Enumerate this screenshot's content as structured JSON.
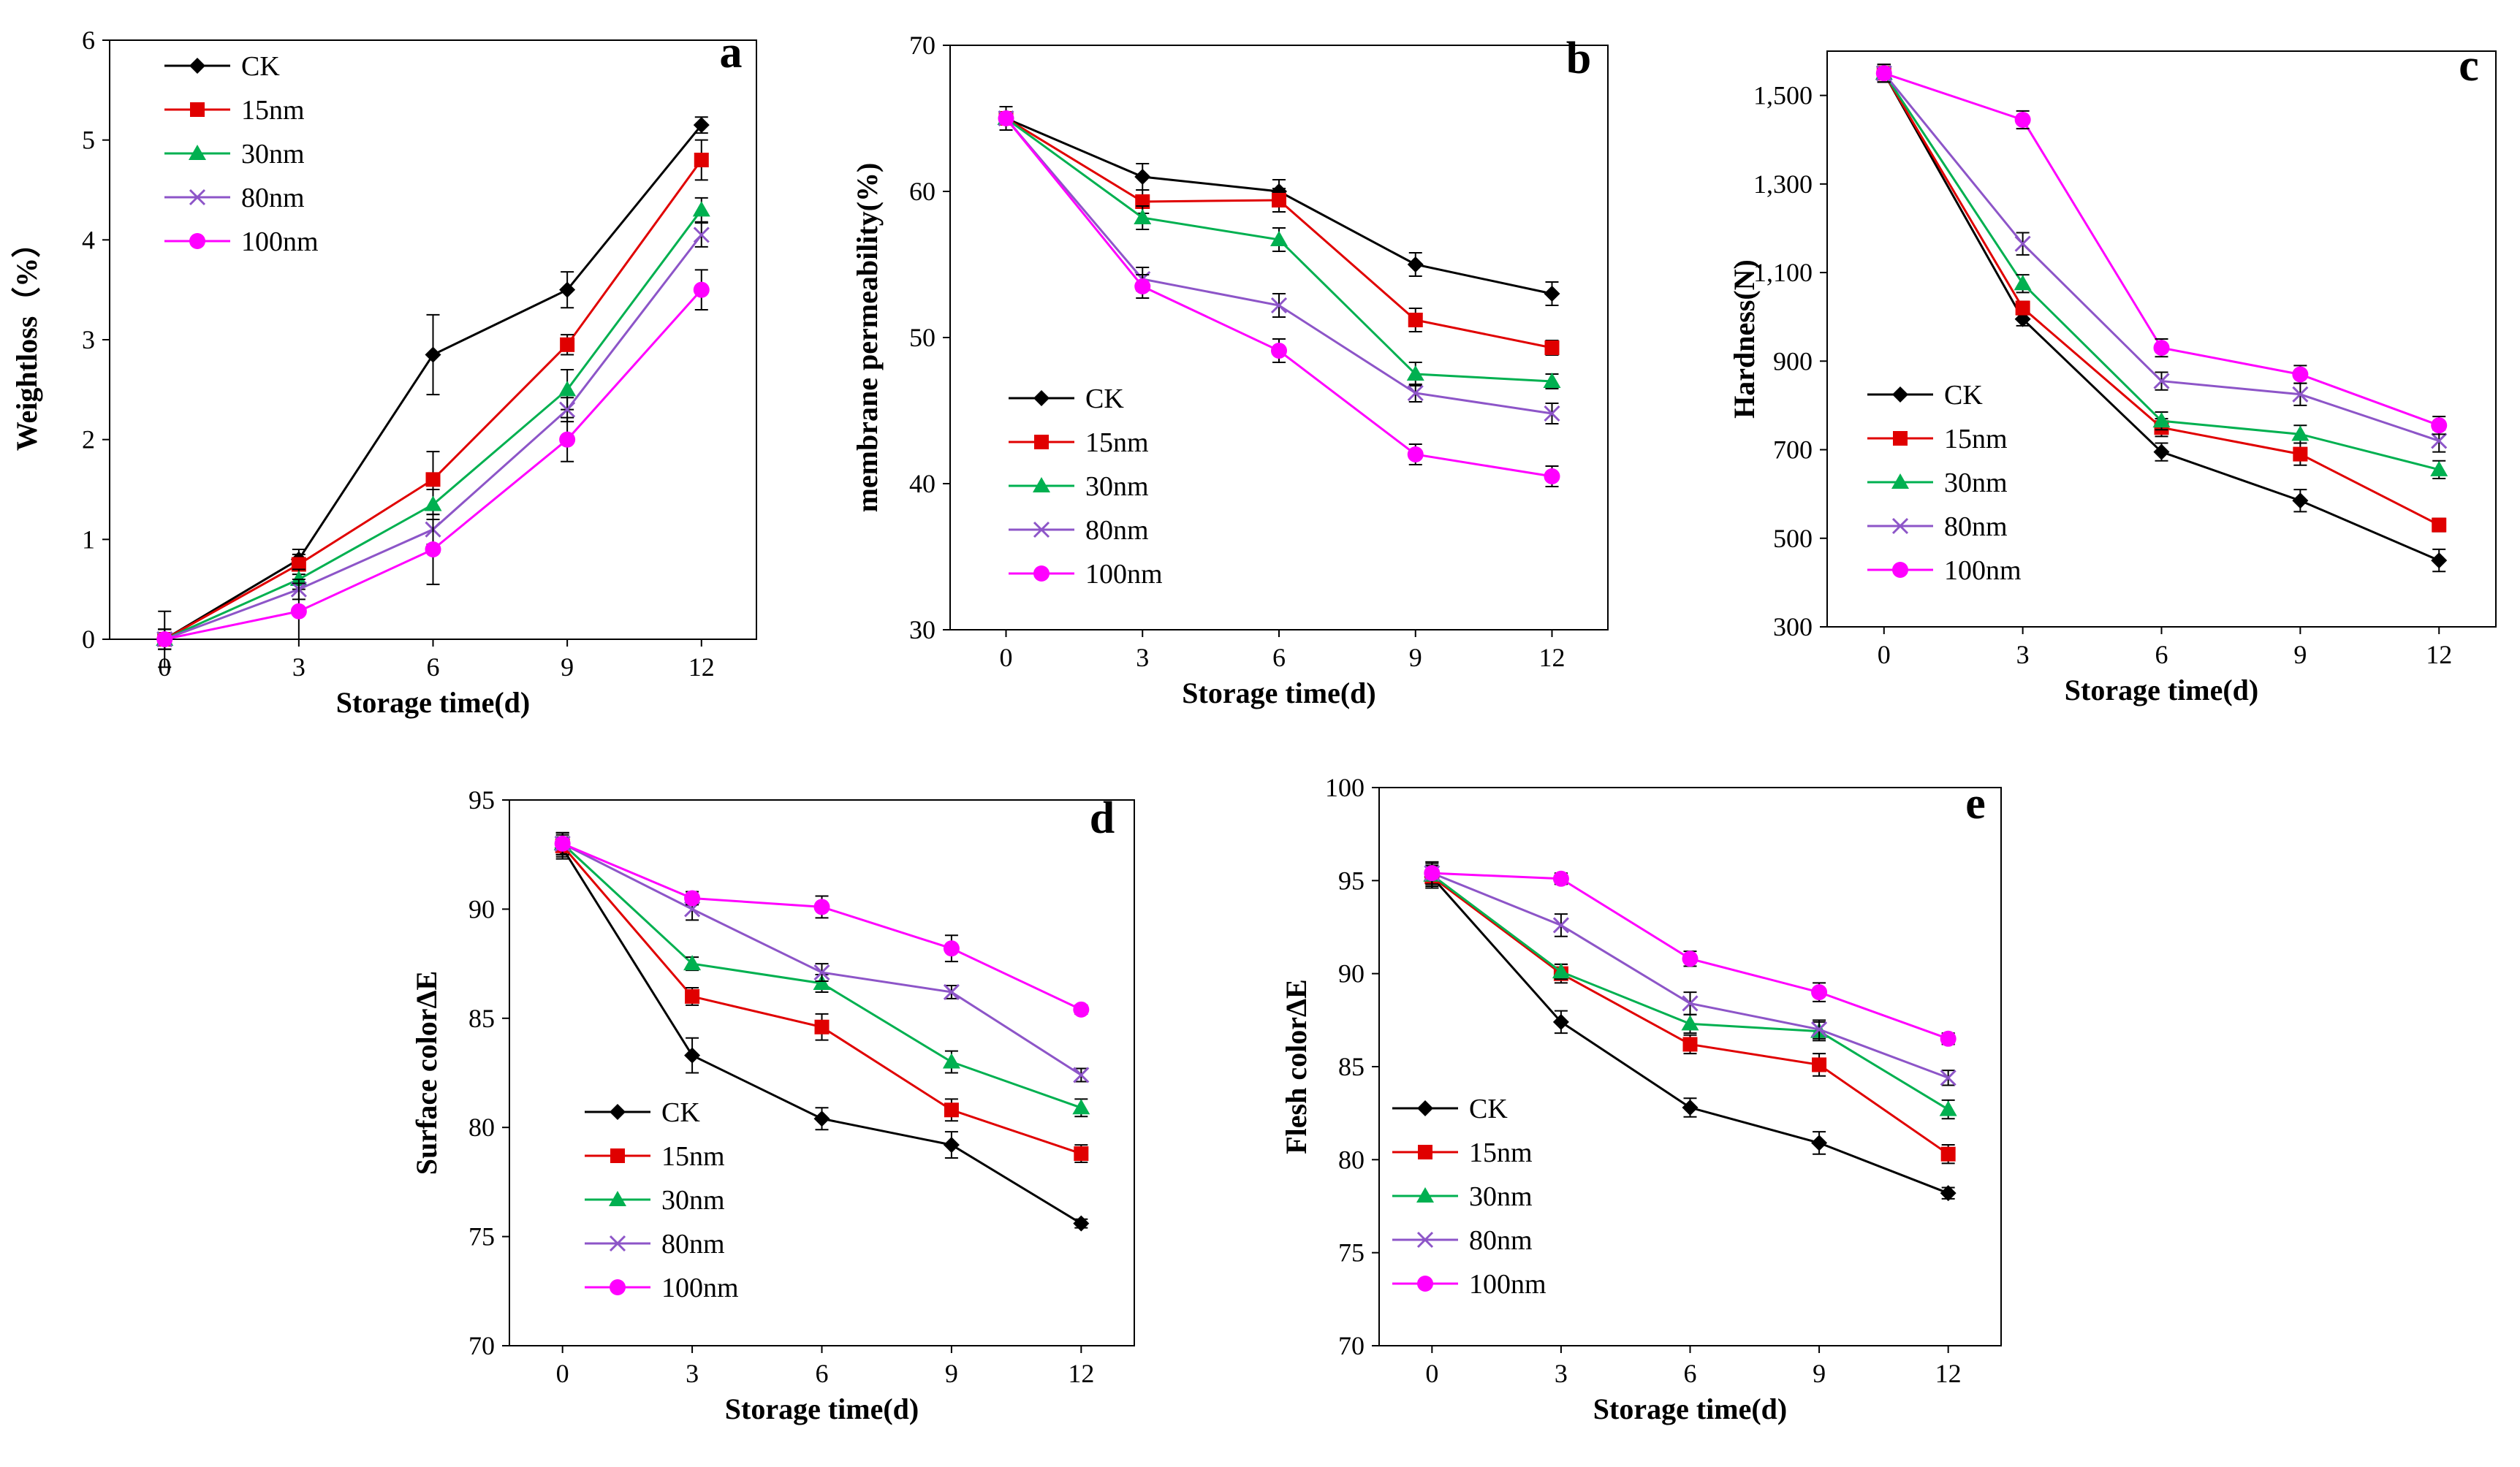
{
  "figure": {
    "series_colors": {
      "CK": "#000000",
      "15nm": "#e00000",
      "30nm": "#00b050",
      "80nm": "#8d55c8",
      "100nm": "#ff00ff"
    },
    "series_markers": {
      "CK": "diamond",
      "15nm": "square",
      "30nm": "triangle",
      "80nm": "x",
      "100nm": "circle"
    }
  },
  "chart_data": [
    {
      "panel": "a",
      "type": "line",
      "x": [
        0,
        3,
        6,
        9,
        12
      ],
      "xlabel": "Storage time(d)",
      "ylabel": "Weightloss（%）",
      "ylim": [
        0,
        6
      ],
      "yticks": [
        0,
        1,
        2,
        3,
        4,
        5,
        6
      ],
      "ytick_labels": [
        "0",
        "1",
        "2",
        "3",
        "4",
        "5",
        "6"
      ],
      "xticks": [
        0,
        3,
        6,
        9,
        12
      ],
      "xtick_labels": [
        "0",
        "3",
        "6",
        "9",
        "12"
      ],
      "legend": "top-left",
      "series": [
        {
          "name": "CK",
          "values": [
            0.0,
            0.8,
            2.85,
            3.5,
            5.15
          ],
          "errors": [
            0.28,
            0.1,
            0.4,
            0.18,
            0.08
          ]
        },
        {
          "name": "15nm",
          "values": [
            0.0,
            0.75,
            1.6,
            2.95,
            4.8
          ],
          "errors": [
            0.1,
            0.1,
            0.28,
            0.1,
            0.2
          ]
        },
        {
          "name": "30nm",
          "values": [
            0.0,
            0.6,
            1.35,
            2.5,
            4.3
          ],
          "errors": [
            0.1,
            0.1,
            0.15,
            0.2,
            0.12
          ]
        },
        {
          "name": "80nm",
          "values": [
            0.0,
            0.5,
            1.1,
            2.3,
            4.05
          ],
          "errors": [
            0.1,
            0.1,
            0.15,
            0.12,
            0.12
          ]
        },
        {
          "name": "100nm",
          "values": [
            0.0,
            0.28,
            0.9,
            2.0,
            3.5
          ],
          "errors": [
            0.1,
            0.28,
            0.35,
            0.22,
            0.2
          ]
        }
      ]
    },
    {
      "panel": "b",
      "type": "line",
      "x": [
        0,
        3,
        6,
        9,
        12
      ],
      "xlabel": "Storage time(d)",
      "ylabel": "membrane  permeability(%)",
      "ylim": [
        30,
        70
      ],
      "yticks": [
        30,
        40,
        50,
        60,
        70
      ],
      "ytick_labels": [
        "30",
        "40",
        "50",
        "60",
        "70"
      ],
      "xticks": [
        0,
        3,
        6,
        9,
        12
      ],
      "xtick_labels": [
        "0",
        "3",
        "6",
        "9",
        "12"
      ],
      "legend": "bottom-left",
      "series": [
        {
          "name": "CK",
          "values": [
            65.0,
            61.0,
            60.0,
            55.0,
            53.0
          ],
          "errors": [
            0.8,
            0.9,
            0.8,
            0.8,
            0.8
          ]
        },
        {
          "name": "15nm",
          "values": [
            65.0,
            59.3,
            59.4,
            51.2,
            49.3
          ],
          "errors": [
            0.8,
            0.8,
            0.8,
            0.8,
            0.5
          ]
        },
        {
          "name": "30nm",
          "values": [
            65.0,
            58.2,
            56.7,
            47.5,
            47.0
          ],
          "errors": [
            0.8,
            0.8,
            0.8,
            0.8,
            0.5
          ]
        },
        {
          "name": "80nm",
          "values": [
            65.0,
            54.0,
            52.2,
            46.2,
            44.8
          ],
          "errors": [
            0.8,
            0.8,
            0.8,
            0.6,
            0.7
          ]
        },
        {
          "name": "100nm",
          "values": [
            65.0,
            53.5,
            49.1,
            42.0,
            40.5
          ],
          "errors": [
            0.8,
            0.8,
            0.8,
            0.7,
            0.7
          ]
        }
      ]
    },
    {
      "panel": "c",
      "type": "line",
      "x": [
        0,
        3,
        6,
        9,
        12
      ],
      "xlabel": "Storage time(d)",
      "ylabel": "Hardness(N)",
      "ylim": [
        300,
        1600
      ],
      "yticks": [
        300,
        500,
        700,
        900,
        1100,
        1300,
        1500
      ],
      "ytick_labels": [
        "300",
        "500",
        "700",
        "900",
        "1,100",
        "1,300",
        "1,500"
      ],
      "xticks": [
        0,
        3,
        6,
        9,
        12
      ],
      "xtick_labels": [
        "0",
        "3",
        "6",
        "9",
        "12"
      ],
      "legend": "bottom-left",
      "series": [
        {
          "name": "CK",
          "values": [
            1550,
            995,
            695,
            585,
            450
          ],
          "errors": [
            20,
            15,
            20,
            25,
            25
          ]
        },
        {
          "name": "15nm",
          "values": [
            1550,
            1020,
            750,
            690,
            530
          ],
          "errors": [
            20,
            15,
            20,
            25,
            15
          ]
        },
        {
          "name": "30nm",
          "values": [
            1550,
            1075,
            765,
            735,
            655
          ],
          "errors": [
            20,
            20,
            20,
            20,
            20
          ]
        },
        {
          "name": "80nm",
          "values": [
            1550,
            1165,
            855,
            825,
            720
          ],
          "errors": [
            20,
            25,
            20,
            25,
            25
          ]
        },
        {
          "name": "100nm",
          "values": [
            1550,
            1445,
            930,
            870,
            755
          ],
          "errors": [
            20,
            20,
            20,
            20,
            20
          ]
        }
      ]
    },
    {
      "panel": "d",
      "type": "line",
      "x": [
        0,
        3,
        6,
        9,
        12
      ],
      "xlabel": "Storage time(d)",
      "ylabel": "Surface colorΔE",
      "ylim": [
        70,
        95
      ],
      "yticks": [
        70,
        75,
        80,
        85,
        90,
        95
      ],
      "ytick_labels": [
        "70",
        "75",
        "80",
        "85",
        "90",
        "95"
      ],
      "xticks": [
        0,
        3,
        6,
        9,
        12
      ],
      "xtick_labels": [
        "0",
        "3",
        "6",
        "9",
        "12"
      ],
      "legend": "bottom-left",
      "series": [
        {
          "name": "CK",
          "values": [
            92.8,
            83.3,
            80.4,
            79.2,
            75.6
          ],
          "errors": [
            0.5,
            0.8,
            0.5,
            0.6,
            0.2
          ]
        },
        {
          "name": "15nm",
          "values": [
            92.9,
            86.0,
            84.6,
            80.8,
            78.8
          ],
          "errors": [
            0.5,
            0.4,
            0.6,
            0.5,
            0.4
          ]
        },
        {
          "name": "30nm",
          "values": [
            93.0,
            87.5,
            86.6,
            83.0,
            80.9
          ],
          "errors": [
            0.5,
            0.3,
            0.4,
            0.5,
            0.4
          ]
        },
        {
          "name": "80nm",
          "values": [
            93.0,
            90.0,
            87.1,
            86.2,
            82.4
          ],
          "errors": [
            0.5,
            0.5,
            0.4,
            0.3,
            0.3
          ]
        },
        {
          "name": "100nm",
          "values": [
            93.0,
            90.5,
            90.1,
            88.2,
            85.4
          ],
          "errors": [
            0.5,
            0.3,
            0.5,
            0.6,
            0.2
          ]
        }
      ]
    },
    {
      "panel": "e",
      "type": "line",
      "x": [
        0,
        3,
        6,
        9,
        12
      ],
      "xlabel": "Storage time(d)",
      "ylabel": "Flesh colorΔE",
      "ylim": [
        70,
        100
      ],
      "yticks": [
        70,
        75,
        80,
        85,
        90,
        95,
        100
      ],
      "ytick_labels": [
        "70",
        "75",
        "80",
        "85",
        "90",
        "95",
        "100"
      ],
      "xticks": [
        0,
        3,
        6,
        9,
        12
      ],
      "xtick_labels": [
        "0",
        "3",
        "6",
        "9",
        "12"
      ],
      "legend": "bottom-left",
      "series": [
        {
          "name": "CK",
          "values": [
            95.2,
            87.4,
            82.8,
            80.9,
            78.2
          ],
          "errors": [
            0.6,
            0.6,
            0.5,
            0.6,
            0.3
          ]
        },
        {
          "name": "15nm",
          "values": [
            95.2,
            90.0,
            86.2,
            85.1,
            80.3
          ],
          "errors": [
            0.6,
            0.5,
            0.5,
            0.6,
            0.5
          ]
        },
        {
          "name": "30nm",
          "values": [
            95.3,
            90.1,
            87.3,
            86.9,
            82.7
          ],
          "errors": [
            0.6,
            0.4,
            0.5,
            0.5,
            0.5
          ]
        },
        {
          "name": "80nm",
          "values": [
            95.4,
            92.6,
            88.4,
            87.0,
            84.4
          ],
          "errors": [
            0.6,
            0.6,
            0.6,
            0.5,
            0.4
          ]
        },
        {
          "name": "100nm",
          "values": [
            95.4,
            95.1,
            90.8,
            89.0,
            86.5
          ],
          "errors": [
            0.6,
            0.3,
            0.4,
            0.5,
            0.3
          ]
        }
      ]
    }
  ]
}
